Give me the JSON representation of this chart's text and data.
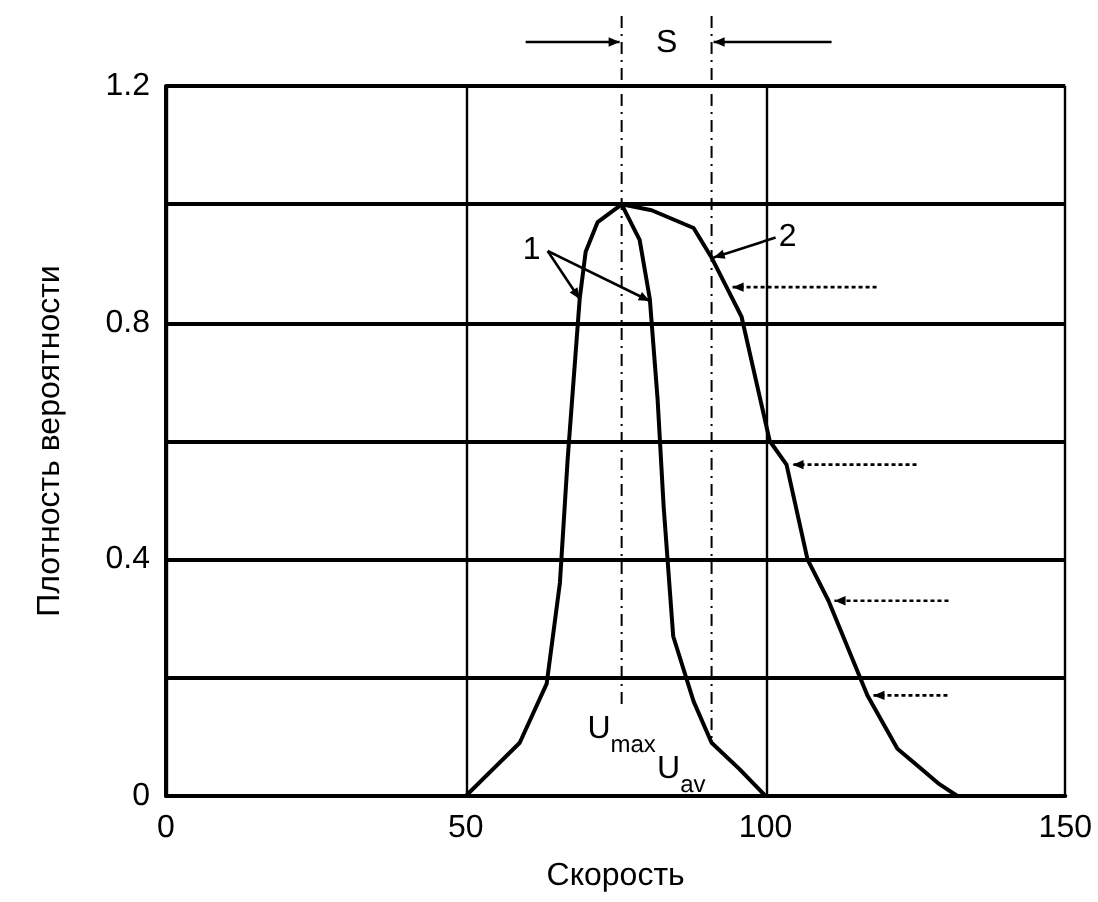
{
  "chart_data": {
    "type": "line",
    "xlabel": "Скорость",
    "ylabel": "Плотность вероятности",
    "xlim": [
      0,
      150
    ],
    "xticks": [
      0,
      50,
      100,
      150
    ],
    "ylim": [
      0,
      1.2
    ],
    "yticks": [
      0,
      {
        "value": 0.2,
        "label": null
      },
      0.4,
      {
        "value": 0.6,
        "label": null
      },
      0.8,
      {
        "value": 1.0,
        "label": null
      },
      1.2
    ],
    "grid": true,
    "marker": "none",
    "line_style": "solid",
    "series": [
      {
        "name": "1",
        "color": "#000000",
        "x": [
          50,
          59,
          63.5,
          65.7,
          67,
          69,
          70,
          72,
          76,
          79,
          80.7,
          82,
          83,
          84.6,
          88,
          91,
          95.7,
          100
        ],
        "values": [
          0,
          0.09,
          0.19,
          0.36,
          0.57,
          0.84,
          0.92,
          0.97,
          1.0,
          0.94,
          0.84,
          0.67,
          0.49,
          0.27,
          0.16,
          0.09,
          0.045,
          0
        ]
      },
      {
        "name": "2",
        "color": "#000000",
        "x": [
          76,
          81,
          88,
          91,
          93.5,
          96,
          100.7,
          103.5,
          107,
          110.5,
          117,
          122,
          129,
          132
        ],
        "values": [
          1.0,
          0.99,
          0.96,
          0.91,
          0.86,
          0.81,
          0.6,
          0.56,
          0.4,
          0.33,
          0.17,
          0.08,
          0.02,
          0
        ]
      }
    ],
    "ref_lines": [
      {
        "axis": "x",
        "value": 76,
        "label": "U$_{max}$",
        "color": "#000000",
        "line_style": "dashed"
      },
      {
        "axis": "x",
        "value": 91,
        "label": "U$_{av}$",
        "color": "#000000",
        "line_style": "dashed"
      }
    ],
    "annotations": [
      "S"
    ]
  }
}
